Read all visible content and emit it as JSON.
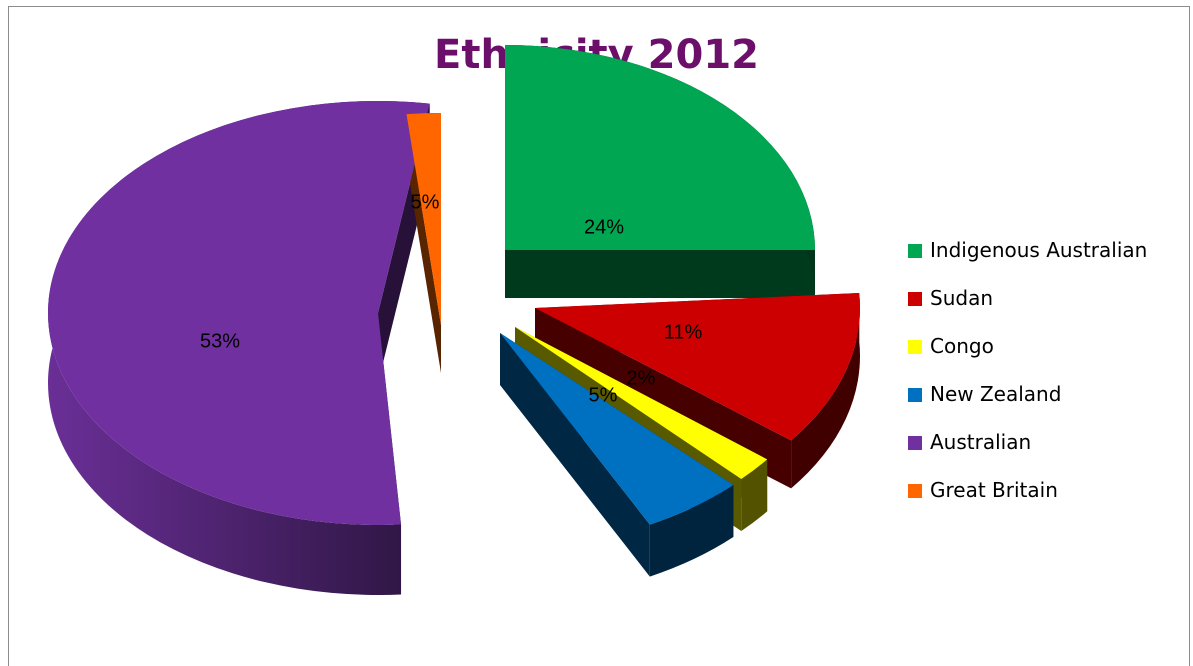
{
  "chart_data": {
    "type": "pie",
    "title": "Ethnicity 2012",
    "categories": [
      "Indigenous Australian",
      "Sudan",
      "Congo",
      "New Zealand",
      "Australian",
      "Great Britain"
    ],
    "values": [
      24,
      11,
      2,
      5,
      53,
      5
    ],
    "data_labels": [
      "24%",
      "11%",
      "2%",
      "5%",
      "53%",
      "5%"
    ],
    "colors": [
      "#00a651",
      "#cc0000",
      "#ffff00",
      "#0070c0",
      "#7030a0",
      "#ff6600"
    ],
    "exploded": true,
    "three_d": true,
    "legend": {
      "position": "right"
    }
  }
}
